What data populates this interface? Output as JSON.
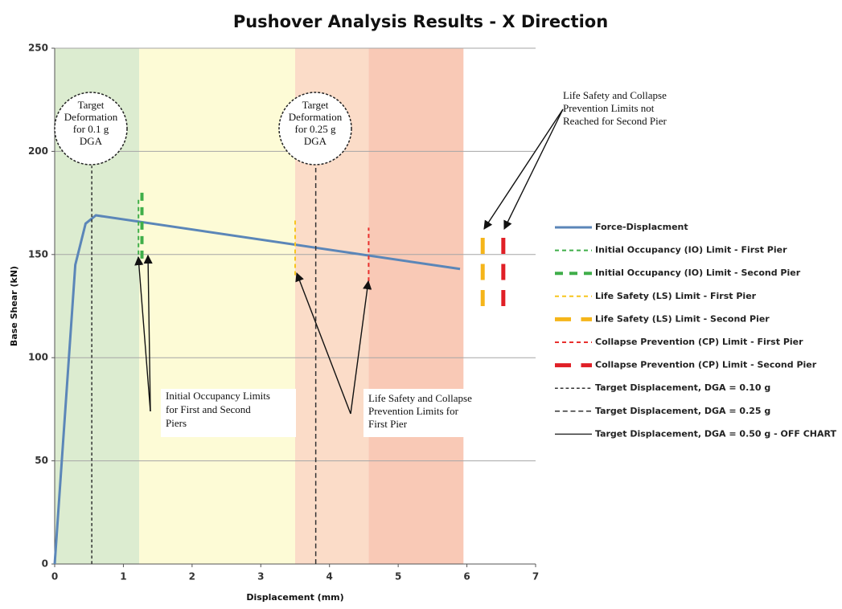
{
  "chart_data": {
    "type": "line",
    "title": "Pushover Analysis Results - X Direction",
    "xlabel": "Displacement (mm)",
    "ylabel": "Base Shear (kN)",
    "xlim": [
      0,
      7
    ],
    "ylim": [
      0,
      250
    ],
    "xticks": [
      0,
      1,
      2,
      3,
      4,
      5,
      6,
      7
    ],
    "yticks": [
      0,
      50,
      100,
      150,
      200,
      250
    ],
    "grid": true,
    "legend": "right",
    "regions": [
      {
        "x0": 0,
        "x1": 1.23,
        "color": "#dcecd0"
      },
      {
        "x0": 1.23,
        "x1": 3.5,
        "color": "#fdfbd6"
      },
      {
        "x0": 3.5,
        "x1": 4.57,
        "color": "#fbdcc8"
      },
      {
        "x0": 4.57,
        "x1": 5.95,
        "color": "#f9c9b6"
      }
    ],
    "series": [
      {
        "name": "Force-Displacment",
        "color": "#5b86b8",
        "dash": "solid",
        "width": 3,
        "x": [
          0,
          0.3,
          0.45,
          0.6,
          5.9
        ],
        "values": [
          0,
          145,
          165,
          169,
          143
        ]
      },
      {
        "name": "Initial Occupancy (IO) Limit - First Pier",
        "color": "#3fae49",
        "dash": "short",
        "width": 2,
        "x": [
          1.22,
          1.22
        ],
        "values": [
          150,
          178
        ]
      },
      {
        "name": "Initial Occupancy (IO) Limit - Second Pier",
        "color": "#3fae49",
        "dash": "short",
        "width": 4,
        "x": [
          1.27,
          1.27
        ],
        "values": [
          148,
          182
        ]
      },
      {
        "name": "Life Safety (LS) Limit - First Pier",
        "color": "#f7c51e",
        "dash": "short",
        "width": 2,
        "x": [
          3.5,
          3.5
        ],
        "values": [
          140,
          167
        ]
      },
      {
        "name": "Life Safety (LS) Limit - Second Pier",
        "color": "#f5b51a",
        "dash": "long",
        "width": 5,
        "x": [
          6.23,
          6.23
        ],
        "values": [
          125,
          160
        ]
      },
      {
        "name": "Collapse Prevention (CP) Limit - First Pier",
        "color": "#e8302e",
        "dash": "short",
        "width": 2,
        "x": [
          4.57,
          4.57
        ],
        "values": [
          137,
          163
        ]
      },
      {
        "name": "Collapse Prevention (CP) Limit - Second Pier",
        "color": "#e01f26",
        "dash": "long",
        "width": 5,
        "x": [
          6.53,
          6.53
        ],
        "values": [
          125,
          160
        ]
      },
      {
        "name": "Target Displacement, DGA = 0.10 g",
        "color": "#333333",
        "dash": "short",
        "width": 1.5,
        "x": [
          0.54,
          0.54
        ],
        "values": [
          0,
          193
        ]
      },
      {
        "name": "Target Displacement, DGA = 0.25 g",
        "color": "#333333",
        "dash": "long",
        "width": 1.5,
        "x": [
          3.8,
          3.8
        ],
        "values": [
          0,
          192
        ]
      },
      {
        "name": "Target Displacement, DGA = 0.50 g - OFF CHART",
        "color": "#333333",
        "dash": "solid",
        "width": 1.5
      }
    ],
    "annotations": [
      {
        "lines": [
          "Target",
          "Deformation",
          "for  0.1 g",
          "DGA"
        ]
      },
      {
        "lines": [
          "Target",
          "Deformation",
          "for  0.25 g",
          "DGA"
        ]
      },
      {
        "lines": [
          "Initial Occupancy Limits",
          "for First and Second",
          "Piers"
        ]
      },
      {
        "lines": [
          "Life Safety and Collapse",
          "Prevention Limits for",
          "First Pier"
        ]
      },
      {
        "lines": [
          "Life Safety and Collapse",
          "Prevention Limits not",
          "Reached for Second Pier"
        ]
      }
    ]
  }
}
